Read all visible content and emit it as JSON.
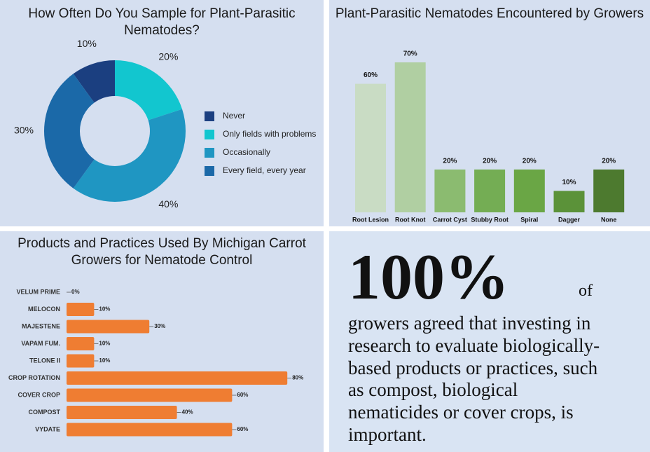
{
  "chart_data": [
    {
      "type": "pie",
      "title": "How Often Do You Sample for Plant-Parasitic Nematodes?",
      "categories": [
        "Never",
        "Only fields with problems",
        "Occasionally",
        "Every field, every year"
      ],
      "values": [
        10,
        20,
        40,
        30
      ],
      "value_labels": [
        "10%",
        "20%",
        "40%",
        "30%"
      ],
      "colors": [
        "#1b3f80",
        "#12c6cf",
        "#1f96c2",
        "#1b69a8"
      ],
      "donut": true,
      "legend": "right"
    },
    {
      "type": "bar",
      "title": "Plant-Parasitic Nematodes Encountered by Growers",
      "categories": [
        "Root Lesion",
        "Root Knot",
        "Carrot Cyst",
        "Stubby Root",
        "Spiral",
        "Dagger",
        "None"
      ],
      "values": [
        60,
        70,
        20,
        20,
        20,
        10,
        20
      ],
      "value_labels": [
        "60%",
        "70%",
        "20%",
        "20%",
        "20%",
        "10%",
        "20%"
      ],
      "colors": [
        "#c9dcc4",
        "#b0cfa2",
        "#8bbb70",
        "#74ad54",
        "#6aa645",
        "#5b9239",
        "#4d7a2f"
      ]
    },
    {
      "type": "barh",
      "title": "Products and Practices Used By Michigan Carrot Growers for Nematode Control",
      "categories": [
        "VELUM PRIME",
        "MELOCON",
        "MAJESTENE",
        "VAPAM FUM.",
        "TELONE II",
        "CROP ROTATION",
        "COVER CROP",
        "COMPOST",
        "VYDATE"
      ],
      "values": [
        0,
        10,
        30,
        10,
        10,
        80,
        60,
        40,
        60
      ],
      "value_labels": [
        "0%",
        "10%",
        "30%",
        "10%",
        "10%",
        "80%",
        "60%",
        "40%",
        "60%"
      ],
      "color": "#ef7d32"
    }
  ],
  "callout": {
    "headline": "100%",
    "suffix": "of",
    "lines": [
      "growers agreed that investing in",
      "research to evaluate biologically-",
      "based products or practices, such",
      "as compost, biological",
      "nematicides or cover crops, is",
      "important."
    ]
  }
}
